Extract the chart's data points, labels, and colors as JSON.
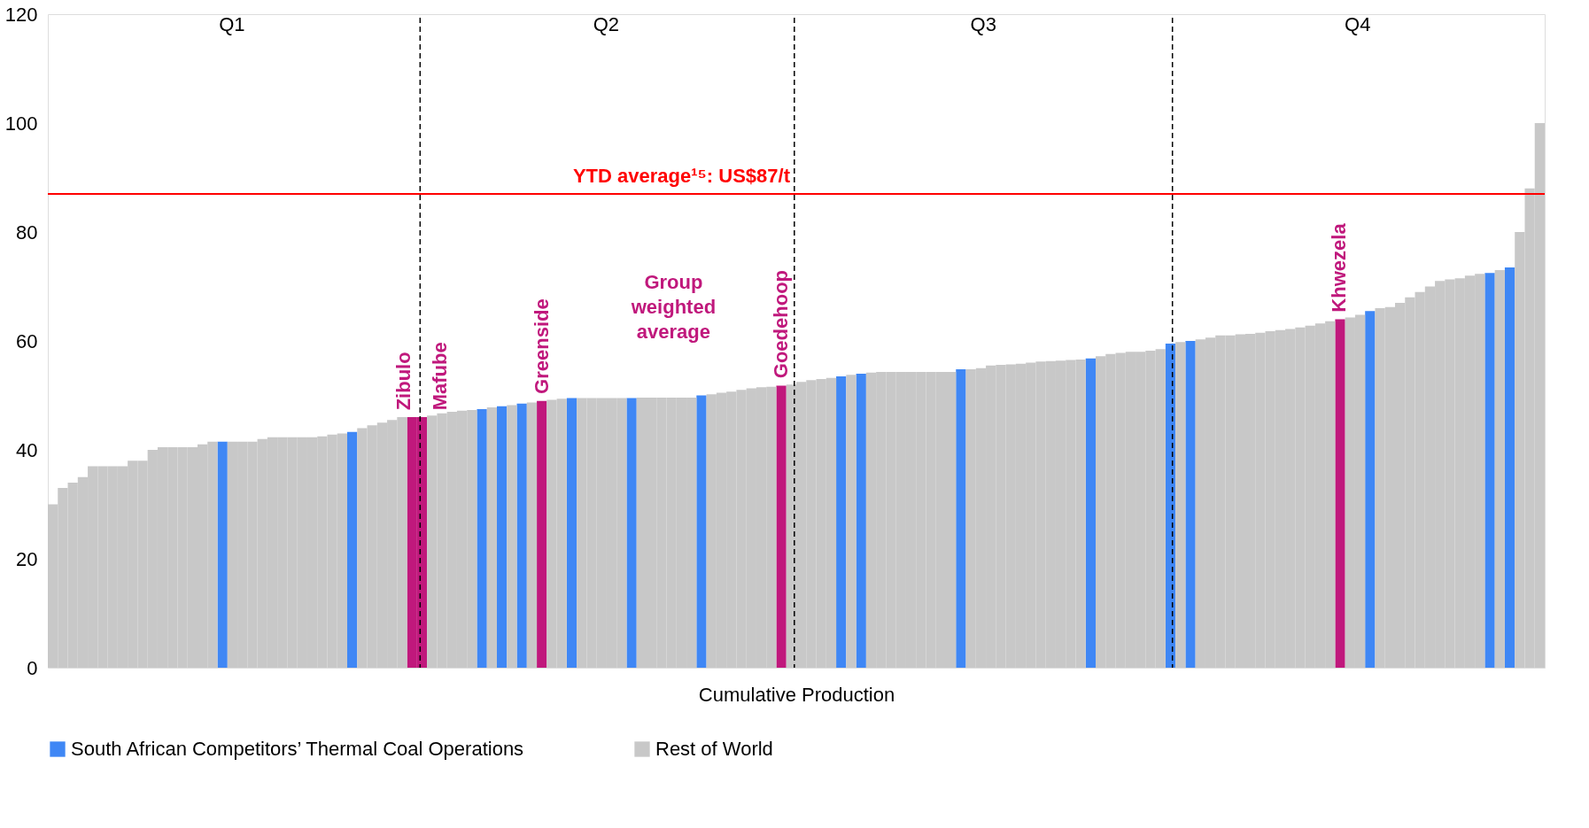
{
  "chart_data": {
    "type": "bar",
    "xlabel": "Cumulative Production",
    "ylim": [
      0,
      120
    ],
    "yticks": [
      0,
      20,
      40,
      60,
      80,
      100,
      120
    ],
    "tick_labels": "y",
    "grid": false,
    "legend": "bottom",
    "categories": [
      null,
      null,
      null,
      null,
      null,
      null,
      null,
      null,
      null,
      null,
      null,
      null,
      null,
      null,
      null,
      null,
      null,
      null,
      null,
      null,
      null,
      null,
      null,
      null,
      null,
      null,
      null,
      null,
      null,
      null,
      null,
      null,
      null,
      null,
      null,
      null,
      null,
      null,
      null,
      null,
      null,
      null,
      null,
      null,
      null,
      null,
      null,
      null,
      null,
      null,
      null,
      null,
      null,
      null,
      null,
      null,
      null,
      null,
      null,
      null,
      null,
      null,
      null,
      null,
      null,
      null,
      null,
      null,
      null,
      null,
      null,
      null,
      null,
      null,
      null,
      null,
      null,
      null,
      null,
      null,
      null,
      null,
      null,
      null,
      null,
      null,
      null,
      null,
      null,
      null,
      null,
      null,
      null,
      null,
      null,
      null,
      null,
      null,
      null,
      null,
      null,
      null,
      null,
      null,
      null,
      null,
      null,
      null,
      null,
      null,
      null,
      null,
      null,
      null,
      null,
      null,
      null,
      null,
      null,
      null,
      null,
      null,
      null,
      null,
      null,
      null,
      null,
      null,
      null,
      null,
      null,
      null,
      null,
      null,
      null,
      null,
      null,
      null,
      null,
      null,
      null,
      null,
      null,
      null,
      null,
      null,
      null,
      null,
      null,
      null
    ],
    "series": [
      {
        "color": "#c0187c",
        "values": [
          null,
          null,
          null,
          null,
          null,
          null,
          null,
          null,
          null,
          null,
          null,
          null,
          null,
          null,
          null,
          null,
          null,
          null,
          null,
          null,
          null,
          null,
          null,
          null,
          null,
          null,
          null,
          null,
          null,
          null,
          null,
          null,
          null,
          null,
          null,
          null,
          46,
          46,
          null,
          null,
          null,
          null,
          null,
          null,
          null,
          null,
          null,
          null,
          null,
          49,
          null,
          null,
          null,
          null,
          null,
          null,
          null,
          null,
          null,
          null,
          null,
          null,
          null,
          null,
          null,
          null,
          null,
          null,
          null,
          null,
          null,
          null,
          null,
          51.8,
          null,
          null,
          null,
          null,
          null,
          null,
          null,
          null,
          null,
          null,
          null,
          null,
          null,
          null,
          null,
          null,
          null,
          null,
          null,
          null,
          null,
          null,
          null,
          null,
          null,
          null,
          null,
          null,
          null,
          null,
          null,
          null,
          null,
          null,
          null,
          null,
          null,
          null,
          null,
          null,
          null,
          null,
          null,
          null,
          null,
          null,
          null,
          null,
          null,
          null,
          null,
          null,
          null,
          null,
          null,
          64,
          null,
          null,
          null,
          null,
          null,
          null,
          null,
          null,
          null,
          null,
          null,
          null,
          null,
          null,
          null,
          null,
          null,
          null,
          null,
          null
        ]
      },
      {
        "name": "South African Competitors’ Thermal Coal Operations",
        "color": "#3f87f5",
        "values": [
          null,
          null,
          null,
          null,
          null,
          null,
          null,
          null,
          null,
          null,
          null,
          null,
          null,
          null,
          null,
          null,
          null,
          41.5,
          null,
          null,
          null,
          null,
          null,
          null,
          null,
          null,
          null,
          null,
          null,
          null,
          43.3,
          null,
          null,
          null,
          null,
          null,
          null,
          null,
          null,
          null,
          null,
          null,
          null,
          47.5,
          null,
          48,
          null,
          48.5,
          null,
          null,
          null,
          null,
          49.5,
          null,
          null,
          null,
          null,
          null,
          49.5,
          null,
          null,
          null,
          null,
          null,
          null,
          50,
          null,
          null,
          null,
          null,
          null,
          null,
          null,
          null,
          null,
          null,
          null,
          null,
          null,
          53.5,
          null,
          54,
          null,
          null,
          null,
          null,
          null,
          null,
          null,
          null,
          null,
          54.8,
          null,
          null,
          null,
          null,
          null,
          null,
          null,
          null,
          null,
          null,
          null,
          null,
          56.8,
          null,
          null,
          null,
          null,
          null,
          null,
          null,
          59.5,
          null,
          60,
          null,
          null,
          null,
          null,
          null,
          null,
          null,
          null,
          null,
          null,
          null,
          null,
          null,
          null,
          null,
          null,
          null,
          65.5,
          null,
          null,
          null,
          null,
          null,
          null,
          null,
          null,
          null,
          null,
          null,
          72.5,
          null,
          73.5,
          null,
          null,
          null
        ]
      },
      {
        "name": "Rest of World",
        "color": "#c8c8c8",
        "values": [
          30,
          33,
          34,
          35,
          37,
          37,
          37,
          37,
          38,
          38,
          40,
          40.5,
          40.5,
          40.5,
          40.5,
          41,
          41.5,
          null,
          41.5,
          41.5,
          41.5,
          42,
          42.3,
          42.3,
          42.3,
          42.3,
          42.3,
          42.5,
          42.8,
          43,
          null,
          44,
          44.5,
          45,
          45.5,
          46,
          null,
          null,
          46.3,
          46.7,
          47,
          47.2,
          47.3,
          null,
          47.8,
          null,
          48.2,
          null,
          48.7,
          null,
          49.2,
          49.4,
          null,
          49.5,
          49.5,
          49.5,
          49.5,
          49.5,
          null,
          49.6,
          49.6,
          49.6,
          49.6,
          49.6,
          49.6,
          null,
          50.2,
          50.5,
          50.7,
          51,
          51.3,
          51.5,
          51.6,
          null,
          52,
          52.5,
          52.8,
          53,
          53.2,
          null,
          53.8,
          null,
          54.2,
          54.3,
          54.3,
          54.3,
          54.3,
          54.3,
          54.3,
          54.3,
          54.3,
          null,
          54.8,
          55,
          55.5,
          55.6,
          55.7,
          55.8,
          56,
          56.2,
          56.3,
          56.4,
          56.5,
          56.6,
          null,
          57.2,
          57.6,
          57.8,
          58,
          58,
          58.2,
          58.5,
          null,
          59.8,
          null,
          60.3,
          60.6,
          61,
          61,
          61.2,
          61.3,
          61.5,
          61.8,
          62,
          62.2,
          62.5,
          62.8,
          63.2,
          63.6,
          null,
          64.3,
          64.8,
          null,
          66,
          66.2,
          67,
          68,
          69,
          70,
          71,
          71.3,
          71.5,
          72,
          72.3,
          null,
          73,
          null,
          80,
          88,
          100
        ]
      }
    ],
    "ref_lines": [
      {
        "axis": "y",
        "value": 87,
        "label": "YTD average¹⁵: US$87/t",
        "color": "#ff0000",
        "line_style": "solid"
      }
    ],
    "annotations": [
      "Q1",
      "Q2",
      "Q3",
      "Q4",
      "Zibulo",
      "Mafube",
      "Greenside",
      "Group weighted average",
      "Goedehoop",
      "Khwezela"
    ]
  }
}
